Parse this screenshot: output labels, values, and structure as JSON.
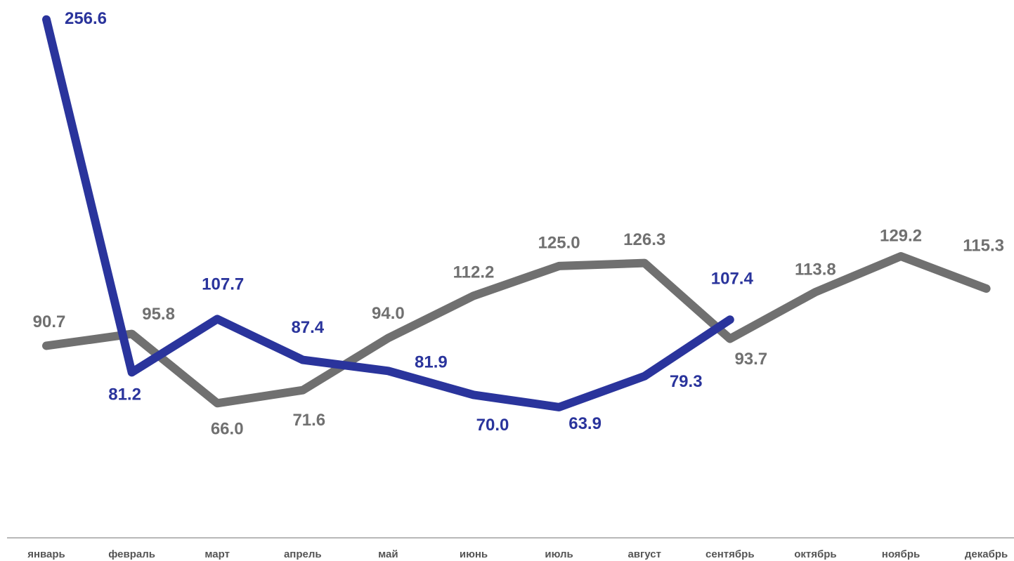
{
  "chart_data": {
    "type": "line",
    "categories": [
      "январь",
      "февраль",
      "март",
      "апрель",
      "май",
      "июнь",
      "июль",
      "август",
      "сентябрь",
      "октябрь",
      "ноябрь",
      "декабрь"
    ],
    "ylim": [
      0,
      260
    ],
    "y2lim": [
      9,
      234
    ],
    "series": [
      {
        "color": "#707070",
        "axis": "y2",
        "values": [
          90.7,
          95.8,
          66.0,
          71.6,
          94.0,
          112.2,
          125.0,
          126.3,
          93.7,
          113.8,
          129.2,
          115.3
        ],
        "value_labels": [
          "90.7",
          "95.8",
          "66.0",
          "71.6",
          "94.0",
          "112.2",
          "125.0",
          "126.3",
          "93.7",
          "113.8",
          "129.2",
          "115.3"
        ]
      },
      {
        "color": "#2a349c",
        "values": [
          256.6,
          81.2,
          107.7,
          87.4,
          81.9,
          70.0,
          63.9,
          79.3,
          107.4,
          null,
          null,
          null
        ],
        "value_labels": [
          "256.6",
          "81.2",
          "107.7",
          "87.4",
          "81.9",
          "70.0",
          "63.9",
          "79.3",
          "107.4",
          null,
          null,
          null
        ]
      }
    ]
  }
}
